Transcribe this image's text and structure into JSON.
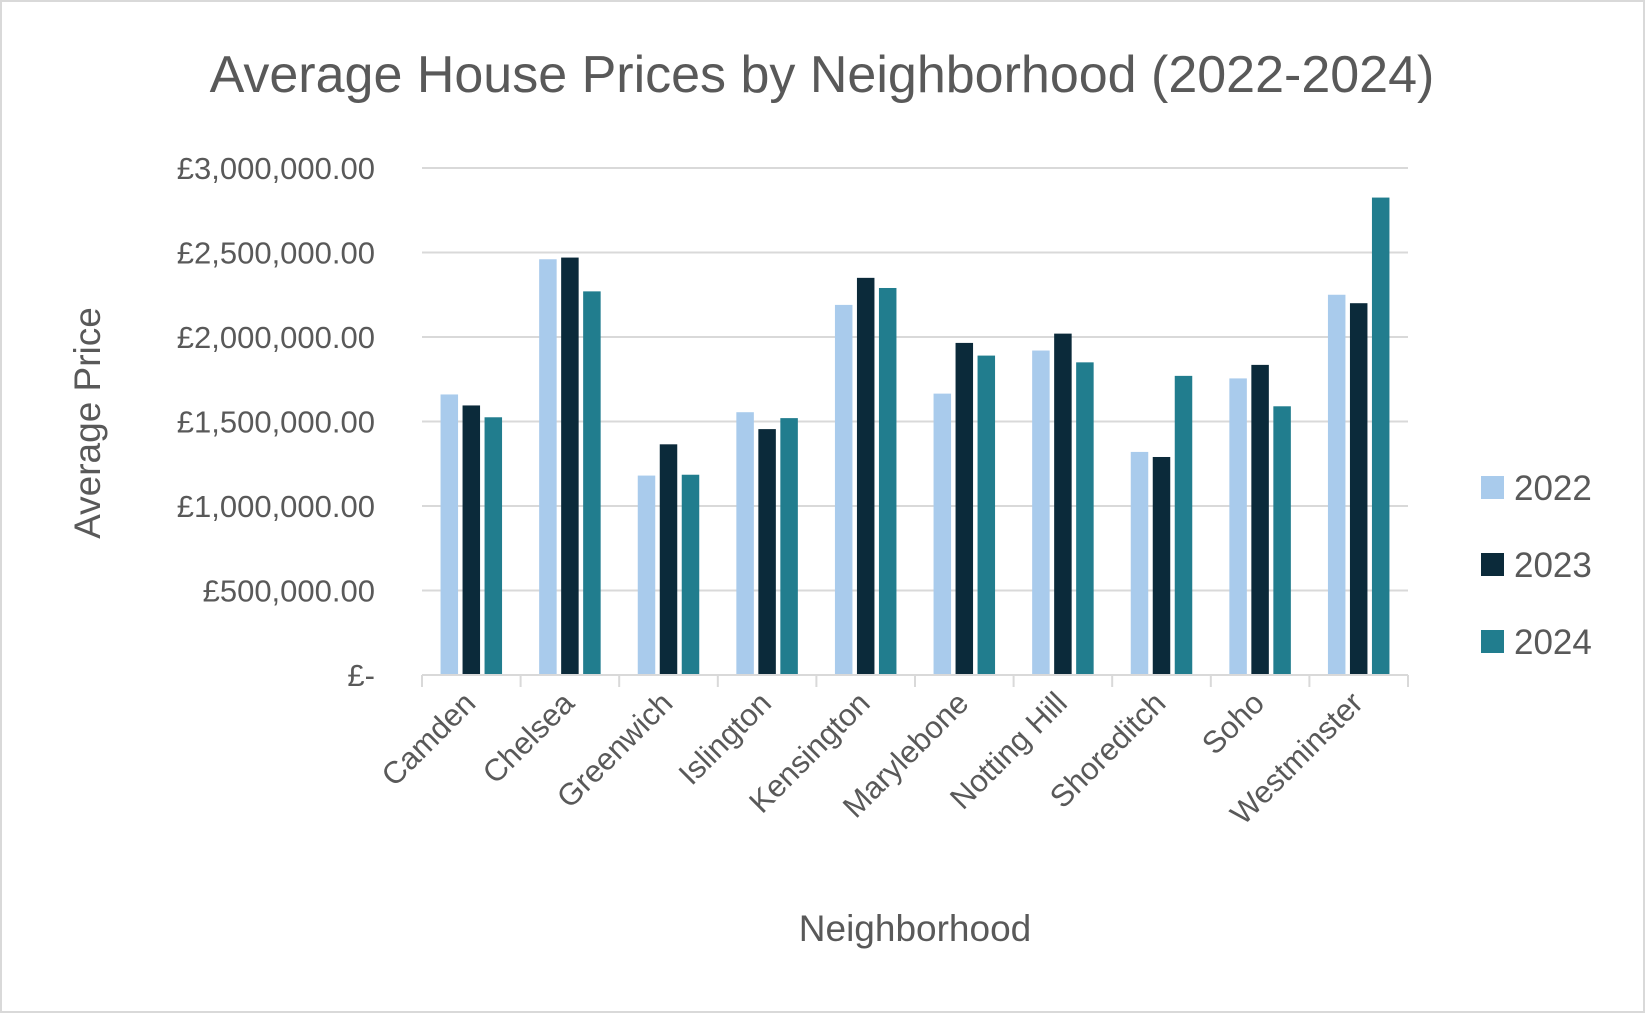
{
  "chart_data": {
    "type": "bar",
    "title": "Average House Prices by Neighborhood (2022-2024)",
    "xlabel": "Neighborhood",
    "ylabel": "Average Price",
    "ylim": [
      0,
      3000000
    ],
    "yticks": [
      0,
      500000,
      1000000,
      1500000,
      2000000,
      2500000,
      3000000
    ],
    "ytick_labels": [
      "£-",
      "£500,000.00",
      "£1,000,000.00",
      "£1,500,000.00",
      "£2,000,000.00",
      "£2,500,000.00",
      "£3,000,000.00"
    ],
    "grid": true,
    "legend_position": "right",
    "categories": [
      "Camden",
      "Chelsea",
      "Greenwich",
      "Islington",
      "Kensington",
      "Marylebone",
      "Notting Hill",
      "Shoreditch",
      "Soho",
      "Westminster"
    ],
    "series": [
      {
        "name": "2022",
        "color": "#a9cbec",
        "values": [
          1660000,
          2460000,
          1180000,
          1555000,
          2190000,
          1665000,
          1920000,
          1320000,
          1755000,
          2250000
        ]
      },
      {
        "name": "2023",
        "color": "#0b2a3a",
        "values": [
          1595000,
          2470000,
          1365000,
          1455000,
          2350000,
          1965000,
          2020000,
          1290000,
          1835000,
          2200000
        ]
      },
      {
        "name": "2024",
        "color": "#217d8e",
        "values": [
          1525000,
          2270000,
          1185000,
          1520000,
          2290000,
          1890000,
          1850000,
          1770000,
          1590000,
          2825000
        ]
      }
    ]
  }
}
